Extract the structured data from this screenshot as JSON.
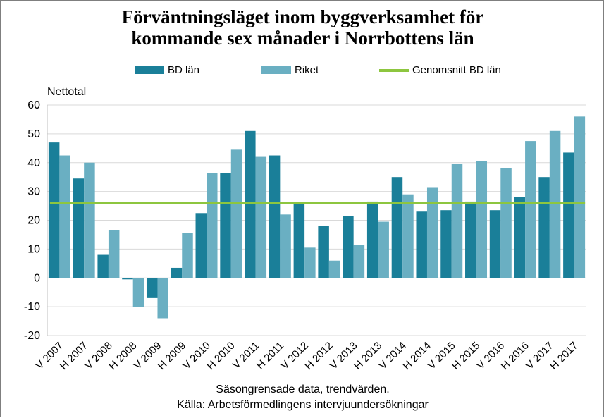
{
  "title_line1": "Förväntningsläget inom byggverksamhet för",
  "title_line2": "kommande sex månader i Norrbottens län",
  "colors": {
    "bd": "#1a7f99",
    "riket": "#6aafc2",
    "avg": "#8dc63f",
    "grid": "#d9d9d9"
  },
  "chart_data": {
    "type": "bar",
    "title": "Förväntningsläget inom byggverksamhet för kommande sex månader i Norrbottens län",
    "ylabel": "Nettotal",
    "xlabel": "",
    "ylim": [
      -20,
      60
    ],
    "yticks": [
      "-20",
      "-10",
      "0",
      "10",
      "20",
      "30",
      "40",
      "50",
      "60"
    ],
    "grid": true,
    "legend_position": "top",
    "categories": [
      "V 2007",
      "H 2007",
      "V 2008",
      "H 2008",
      "V 2009",
      "H 2009",
      "V 2010",
      "H 2010",
      "V 2011",
      "H 2011",
      "V 2012",
      "H 2012",
      "V 2013",
      "H 2013",
      "V 2014",
      "H 2014",
      "V 2015",
      "H 2015",
      "V 2016",
      "H 2016",
      "V 2017",
      "H 2017"
    ],
    "series": [
      {
        "name": "BD län",
        "type": "bar",
        "values": [
          47,
          34.5,
          8,
          -0.5,
          -7,
          3.5,
          22.5,
          36.5,
          51,
          42.5,
          26,
          18,
          21.5,
          26.5,
          35,
          23,
          23.5,
          26.5,
          23.5,
          28,
          35,
          43.5
        ]
      },
      {
        "name": "Riket",
        "type": "bar",
        "values": [
          42.5,
          40,
          16.5,
          -10,
          -14,
          15.5,
          36.5,
          44.5,
          42,
          22,
          10.5,
          6,
          11.5,
          19.5,
          29,
          31.5,
          39.5,
          40.5,
          38,
          47.5,
          51,
          56
        ]
      },
      {
        "name": "Genomsnitt BD län",
        "type": "line",
        "value": 26
      }
    ]
  },
  "footnote1": "Säsongrensade data, trendvärden.",
  "footnote2": "Källa: Arbetsförmedlingens  intervjuundersökningar"
}
